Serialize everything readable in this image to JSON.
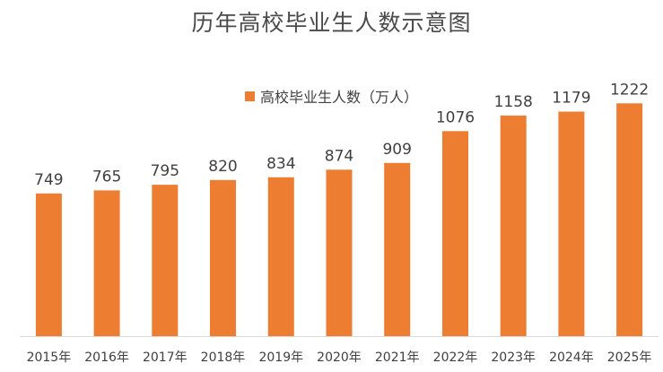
{
  "chart_data": {
    "type": "bar",
    "title": "历年高校毕业生人数示意图",
    "categories": [
      "2015年",
      "2016年",
      "2017年",
      "2018年",
      "2019年",
      "2020年",
      "2021年",
      "2022年",
      "2023年",
      "2024年",
      "2025年"
    ],
    "series": [
      {
        "name": "高校毕业生人数（万人）",
        "values": [
          749,
          765,
          795,
          820,
          834,
          874,
          909,
          1076,
          1158,
          1179,
          1222
        ],
        "color": "#ED7D31"
      }
    ],
    "legend_position": "top",
    "data_labels": true,
    "grid": false
  }
}
